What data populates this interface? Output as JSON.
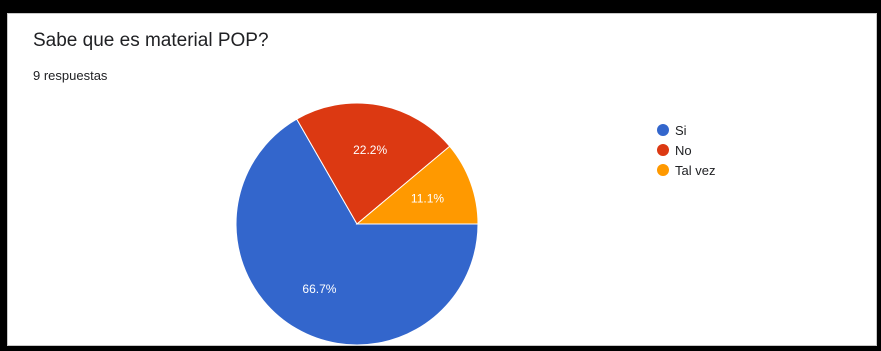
{
  "header": {
    "title": "Sabe que es material POP?",
    "response_count": "9 respuestas"
  },
  "chart_data": {
    "type": "pie",
    "title": "Sabe que es material POP?",
    "categories": [
      "Si",
      "No",
      "Tal vez"
    ],
    "values": [
      66.7,
      22.2,
      11.1
    ],
    "labels": [
      "66.7%",
      "22.2%",
      "11.1%"
    ],
    "colors": [
      "#3366cc",
      "#dc3912",
      "#ff9900"
    ],
    "legend_position": "right"
  }
}
